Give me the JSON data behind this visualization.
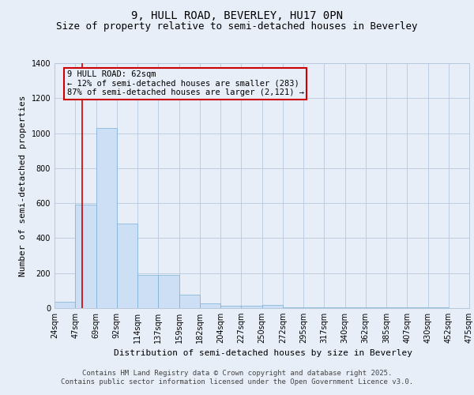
{
  "title_line1": "9, HULL ROAD, BEVERLEY, HU17 0PN",
  "title_line2": "Size of property relative to semi-detached houses in Beverley",
  "xlabel": "Distribution of semi-detached houses by size in Beverley",
  "ylabel": "Number of semi-detached properties",
  "bar_values": [
    35,
    590,
    1030,
    485,
    190,
    190,
    75,
    25,
    15,
    15,
    20,
    5,
    5,
    5,
    5,
    5,
    5,
    5,
    5,
    0
  ],
  "bin_labels": [
    "24sqm",
    "47sqm",
    "69sqm",
    "92sqm",
    "114sqm",
    "137sqm",
    "159sqm",
    "182sqm",
    "204sqm",
    "227sqm",
    "250sqm",
    "272sqm",
    "295sqm",
    "317sqm",
    "340sqm",
    "362sqm",
    "385sqm",
    "407sqm",
    "430sqm",
    "452sqm",
    "475sqm"
  ],
  "bar_color": "#ccdff5",
  "bar_edge_color": "#7bafd4",
  "grid_color": "#b8c8dc",
  "background_color": "#e8eef8",
  "vline_x": 1.35,
  "vline_color": "#cc0000",
  "annotation_text": "9 HULL ROAD: 62sqm\n← 12% of semi-detached houses are smaller (283)\n87% of semi-detached houses are larger (2,121) →",
  "annotation_box_facecolor": "#e8eef8",
  "annotation_box_edgecolor": "#cc0000",
  "ylim": [
    0,
    1400
  ],
  "yticks": [
    0,
    200,
    400,
    600,
    800,
    1000,
    1200,
    1400
  ],
  "footer_line1": "Contains HM Land Registry data © Crown copyright and database right 2025.",
  "footer_line2": "Contains public sector information licensed under the Open Government Licence v3.0.",
  "title_fontsize": 10,
  "subtitle_fontsize": 9,
  "axis_label_fontsize": 8,
  "tick_fontsize": 7,
  "annotation_fontsize": 7.5,
  "footer_fontsize": 6.5
}
